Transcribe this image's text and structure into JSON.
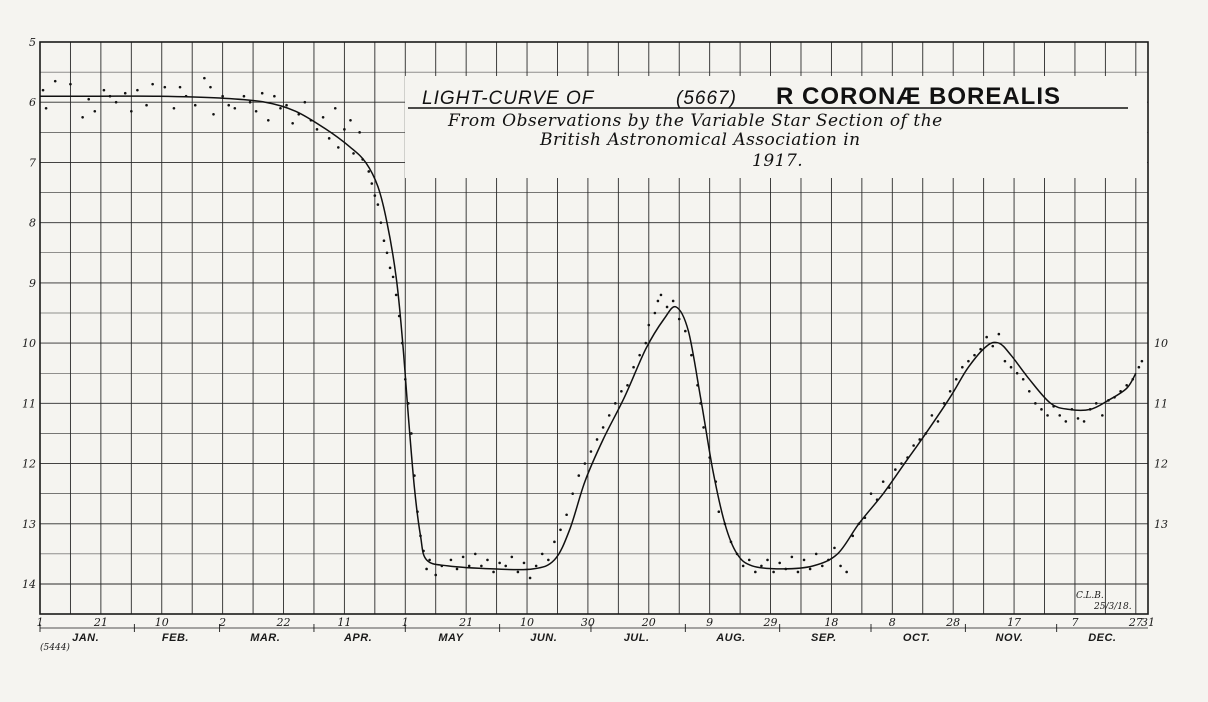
{
  "title": {
    "prefix": "LIGHT-CURVE OF",
    "number": "(5667)",
    "star": "R CORONÆ BOREALIS",
    "line2": "From Observations by the Variable Star Section of the",
    "line3": "British Astronomical Association in",
    "year": "1917."
  },
  "signature": {
    "initials": "C.L.B.",
    "date": "25/3/18."
  },
  "plate_number": "(5444)",
  "colors": {
    "ink": "#1a1a1a",
    "paper": "#f5f4f0"
  },
  "chart_data": {
    "type": "scatter",
    "xlabel": "",
    "ylabel": "",
    "grid": true,
    "y_inverted": true,
    "xlim_days": [
      1,
      365
    ],
    "ylim": [
      5,
      14.5
    ],
    "y_ticks_left": [
      "5",
      "6",
      "7",
      "8",
      "9",
      "10",
      "11",
      "12",
      "13",
      "14"
    ],
    "y_ticks_right": [
      "10",
      "11",
      "12",
      "13"
    ],
    "x_ticks": [
      {
        "label": "1",
        "day": 1
      },
      {
        "label": "21",
        "day": 21
      },
      {
        "label": "10",
        "day": 41
      },
      {
        "label": "2",
        "day": 61
      },
      {
        "label": "22",
        "day": 81
      },
      {
        "label": "11",
        "day": 101
      },
      {
        "label": "1",
        "day": 121
      },
      {
        "label": "21",
        "day": 141
      },
      {
        "label": "10",
        "day": 161
      },
      {
        "label": "30",
        "day": 181
      },
      {
        "label": "20",
        "day": 201
      },
      {
        "label": "9",
        "day": 221
      },
      {
        "label": "29",
        "day": 241
      },
      {
        "label": "18",
        "day": 261
      },
      {
        "label": "8",
        "day": 281
      },
      {
        "label": "28",
        "day": 301
      },
      {
        "label": "17",
        "day": 321
      },
      {
        "label": "7",
        "day": 341
      },
      {
        "label": "27",
        "day": 361
      },
      {
        "label": "31",
        "day": 365
      }
    ],
    "months": [
      {
        "label": "JAN.",
        "start": 1
      },
      {
        "label": "FEB.",
        "start": 32
      },
      {
        "label": "MAR.",
        "start": 60
      },
      {
        "label": "APR.",
        "start": 91
      },
      {
        "label": "MAY",
        "start": 121
      },
      {
        "label": "JUN.",
        "start": 152
      },
      {
        "label": "JUL.",
        "start": 182
      },
      {
        "label": "AUG.",
        "start": 213
      },
      {
        "label": "SEP.",
        "start": 244
      },
      {
        "label": "OCT.",
        "start": 274
      },
      {
        "label": "NOV.",
        "start": 305
      },
      {
        "label": "DEC.",
        "start": 335
      }
    ],
    "mean_curve": {
      "name": "",
      "points": [
        [
          1,
          5.9
        ],
        [
          20,
          5.9
        ],
        [
          40,
          5.9
        ],
        [
          60,
          5.93
        ],
        [
          75,
          6.0
        ],
        [
          85,
          6.15
        ],
        [
          95,
          6.45
        ],
        [
          103,
          6.75
        ],
        [
          108,
          7.0
        ],
        [
          112,
          7.4
        ],
        [
          115,
          8.0
        ],
        [
          118,
          8.9
        ],
        [
          120,
          9.9
        ],
        [
          122,
          11.2
        ],
        [
          124,
          12.4
        ],
        [
          126,
          13.2
        ],
        [
          128,
          13.6
        ],
        [
          135,
          13.7
        ],
        [
          150,
          13.75
        ],
        [
          163,
          13.75
        ],
        [
          170,
          13.6
        ],
        [
          175,
          13.1
        ],
        [
          180,
          12.3
        ],
        [
          186,
          11.6
        ],
        [
          193,
          10.9
        ],
        [
          200,
          10.1
        ],
        [
          206,
          9.6
        ],
        [
          210,
          9.4
        ],
        [
          214,
          9.8
        ],
        [
          218,
          10.9
        ],
        [
          222,
          12.1
        ],
        [
          226,
          13.0
        ],
        [
          230,
          13.5
        ],
        [
          235,
          13.7
        ],
        [
          245,
          13.75
        ],
        [
          255,
          13.7
        ],
        [
          263,
          13.5
        ],
        [
          270,
          13.0
        ],
        [
          278,
          12.5
        ],
        [
          285,
          12.0
        ],
        [
          292,
          11.5
        ],
        [
          300,
          10.9
        ],
        [
          306,
          10.4
        ],
        [
          312,
          10.05
        ],
        [
          316,
          10.0
        ],
        [
          320,
          10.2
        ],
        [
          326,
          10.6
        ],
        [
          333,
          11.0
        ],
        [
          339,
          11.1
        ],
        [
          346,
          11.1
        ],
        [
          352,
          10.95
        ],
        [
          358,
          10.75
        ],
        [
          361,
          10.5
        ]
      ]
    },
    "observations": [
      [
        2,
        5.8
      ],
      [
        3,
        6.1
      ],
      [
        6,
        5.65
      ],
      [
        11,
        5.7
      ],
      [
        15,
        6.25
      ],
      [
        17,
        5.95
      ],
      [
        19,
        6.15
      ],
      [
        22,
        5.8
      ],
      [
        24,
        5.9
      ],
      [
        26,
        6.0
      ],
      [
        29,
        5.85
      ],
      [
        31,
        6.15
      ],
      [
        33,
        5.8
      ],
      [
        36,
        6.05
      ],
      [
        38,
        5.7
      ],
      [
        42,
        5.75
      ],
      [
        45,
        6.1
      ],
      [
        47,
        5.75
      ],
      [
        49,
        5.9
      ],
      [
        52,
        6.05
      ],
      [
        55,
        5.6
      ],
      [
        57,
        5.75
      ],
      [
        58,
        6.2
      ],
      [
        61,
        5.9
      ],
      [
        63,
        6.05
      ],
      [
        65,
        6.1
      ],
      [
        68,
        5.9
      ],
      [
        70,
        6.0
      ],
      [
        72,
        6.15
      ],
      [
        74,
        5.85
      ],
      [
        76,
        6.3
      ],
      [
        78,
        5.9
      ],
      [
        80,
        6.1
      ],
      [
        82,
        6.05
      ],
      [
        84,
        6.35
      ],
      [
        86,
        6.2
      ],
      [
        88,
        6.0
      ],
      [
        90,
        6.3
      ],
      [
        92,
        6.45
      ],
      [
        94,
        6.25
      ],
      [
        96,
        6.6
      ],
      [
        98,
        6.1
      ],
      [
        99,
        6.75
      ],
      [
        101,
        6.45
      ],
      [
        103,
        6.3
      ],
      [
        104,
        6.85
      ],
      [
        106,
        6.5
      ],
      [
        107,
        6.95
      ],
      [
        109,
        7.15
      ],
      [
        110,
        7.35
      ],
      [
        111,
        7.55
      ],
      [
        112,
        7.7
      ],
      [
        113,
        8.0
      ],
      [
        114,
        8.3
      ],
      [
        115,
        8.5
      ],
      [
        116,
        8.75
      ],
      [
        117,
        8.9
      ],
      [
        118,
        9.2
      ],
      [
        119,
        9.55
      ],
      [
        120,
        10.0
      ],
      [
        121,
        10.6
      ],
      [
        122,
        11.0
      ],
      [
        123,
        11.5
      ],
      [
        124,
        12.2
      ],
      [
        125,
        12.8
      ],
      [
        126,
        13.2
      ],
      [
        127,
        13.45
      ],
      [
        128,
        13.75
      ],
      [
        129,
        13.6
      ],
      [
        131,
        13.85
      ],
      [
        133,
        13.7
      ],
      [
        136,
        13.6
      ],
      [
        138,
        13.75
      ],
      [
        140,
        13.55
      ],
      [
        142,
        13.7
      ],
      [
        144,
        13.5
      ],
      [
        146,
        13.7
      ],
      [
        148,
        13.6
      ],
      [
        150,
        13.8
      ],
      [
        152,
        13.65
      ],
      [
        154,
        13.7
      ],
      [
        156,
        13.55
      ],
      [
        158,
        13.8
      ],
      [
        160,
        13.65
      ],
      [
        162,
        13.9
      ],
      [
        164,
        13.7
      ],
      [
        166,
        13.5
      ],
      [
        168,
        13.6
      ],
      [
        170,
        13.3
      ],
      [
        172,
        13.1
      ],
      [
        174,
        12.85
      ],
      [
        176,
        12.5
      ],
      [
        178,
        12.2
      ],
      [
        180,
        12.0
      ],
      [
        182,
        11.8
      ],
      [
        184,
        11.6
      ],
      [
        186,
        11.4
      ],
      [
        188,
        11.2
      ],
      [
        190,
        11.0
      ],
      [
        192,
        10.8
      ],
      [
        194,
        10.7
      ],
      [
        196,
        10.4
      ],
      [
        198,
        10.2
      ],
      [
        200,
        10.0
      ],
      [
        201,
        9.7
      ],
      [
        203,
        9.5
      ],
      [
        204,
        9.3
      ],
      [
        205,
        9.2
      ],
      [
        207,
        9.4
      ],
      [
        209,
        9.3
      ],
      [
        211,
        9.6
      ],
      [
        213,
        9.8
      ],
      [
        215,
        10.2
      ],
      [
        217,
        10.7
      ],
      [
        218,
        11.0
      ],
      [
        219,
        11.4
      ],
      [
        221,
        11.9
      ],
      [
        223,
        12.3
      ],
      [
        224,
        12.8
      ],
      [
        226,
        13.0
      ],
      [
        228,
        13.3
      ],
      [
        230,
        13.5
      ],
      [
        232,
        13.7
      ],
      [
        234,
        13.6
      ],
      [
        236,
        13.8
      ],
      [
        238,
        13.7
      ],
      [
        240,
        13.6
      ],
      [
        242,
        13.8
      ],
      [
        244,
        13.65
      ],
      [
        246,
        13.75
      ],
      [
        248,
        13.55
      ],
      [
        250,
        13.8
      ],
      [
        252,
        13.6
      ],
      [
        254,
        13.75
      ],
      [
        256,
        13.5
      ],
      [
        258,
        13.7
      ],
      [
        260,
        13.6
      ],
      [
        262,
        13.4
      ],
      [
        264,
        13.7
      ],
      [
        266,
        13.8
      ],
      [
        268,
        13.2
      ],
      [
        270,
        13.0
      ],
      [
        272,
        12.9
      ],
      [
        274,
        12.5
      ],
      [
        276,
        12.6
      ],
      [
        278,
        12.3
      ],
      [
        280,
        12.4
      ],
      [
        282,
        12.1
      ],
      [
        284,
        12.0
      ],
      [
        286,
        11.9
      ],
      [
        288,
        11.7
      ],
      [
        290,
        11.6
      ],
      [
        292,
        11.5
      ],
      [
        294,
        11.2
      ],
      [
        296,
        11.3
      ],
      [
        298,
        11.0
      ],
      [
        300,
        10.8
      ],
      [
        302,
        10.6
      ],
      [
        304,
        10.4
      ],
      [
        306,
        10.3
      ],
      [
        308,
        10.2
      ],
      [
        310,
        10.1
      ],
      [
        312,
        9.9
      ],
      [
        314,
        10.05
      ],
      [
        316,
        9.85
      ],
      [
        318,
        10.3
      ],
      [
        320,
        10.4
      ],
      [
        322,
        10.5
      ],
      [
        324,
        10.6
      ],
      [
        326,
        10.8
      ],
      [
        328,
        11.0
      ],
      [
        330,
        11.1
      ],
      [
        332,
        11.2
      ],
      [
        334,
        11.05
      ],
      [
        336,
        11.2
      ],
      [
        338,
        11.3
      ],
      [
        340,
        11.1
      ],
      [
        342,
        11.25
      ],
      [
        344,
        11.3
      ],
      [
        346,
        11.1
      ],
      [
        348,
        11.0
      ],
      [
        350,
        11.2
      ],
      [
        352,
        10.95
      ],
      [
        354,
        10.9
      ],
      [
        356,
        10.8
      ],
      [
        358,
        10.7
      ],
      [
        360,
        10.6
      ],
      [
        362,
        10.4
      ],
      [
        363,
        10.3
      ]
    ]
  }
}
